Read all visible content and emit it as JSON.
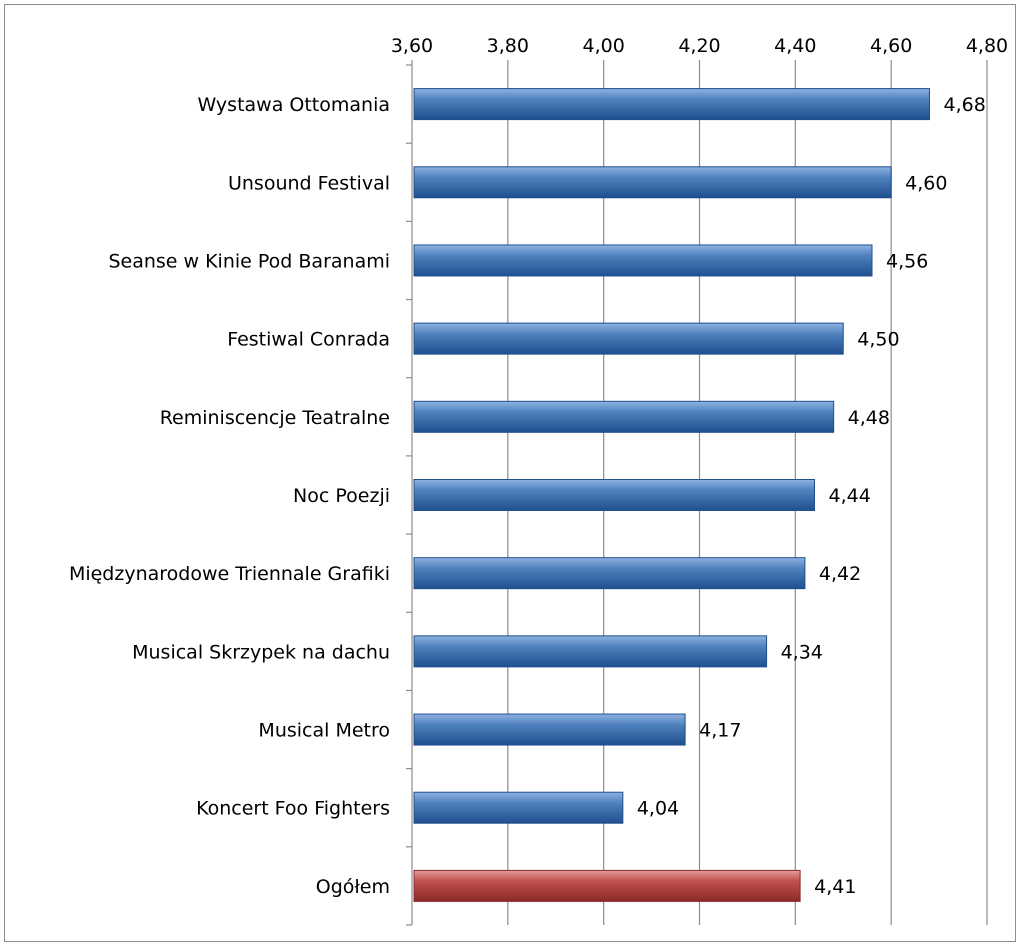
{
  "chart_data": {
    "type": "bar",
    "orientation": "horizontal",
    "x_axis_position": "top",
    "xlim": [
      3.6,
      4.8
    ],
    "tick_labels": [
      "3,60",
      "3,80",
      "4,00",
      "4,20",
      "4,40",
      "4,60",
      "4,80"
    ],
    "tick_values": [
      3.6,
      3.8,
      4.0,
      4.2,
      4.4,
      4.6,
      4.8
    ],
    "grid": true,
    "categories": [
      "Wystawa Ottomania",
      "Unsound Festival",
      "Seanse  w Kinie Pod Baranami",
      "Festiwal Conrada",
      "Reminiscencje  Teatralne",
      "Noc Poezji",
      "Międzynarodowe Triennale Grafiki",
      "Musical Skrzypek na dachu",
      "Musical Metro",
      "Koncert Foo Fighters",
      "Ogółem"
    ],
    "values": [
      4.68,
      4.6,
      4.56,
      4.5,
      4.48,
      4.44,
      4.42,
      4.34,
      4.17,
      4.04,
      4.41
    ],
    "data_labels": [
      "4,68",
      "4,60",
      "4,56",
      "4,50",
      "4,48",
      "4,44",
      "4,42",
      "4,34",
      "4,17",
      "4,04",
      "4,41"
    ],
    "colors": {
      "bar": "#4f81bd",
      "bar_dark": "#1f4f8f",
      "bar_light": "#8fb3e3",
      "highlight_bar": "#c0504d",
      "highlight_dark": "#8b2a28",
      "highlight_light": "#e39c9a",
      "grid": "#8c8c8c"
    },
    "highlight_category": "Ogółem"
  }
}
